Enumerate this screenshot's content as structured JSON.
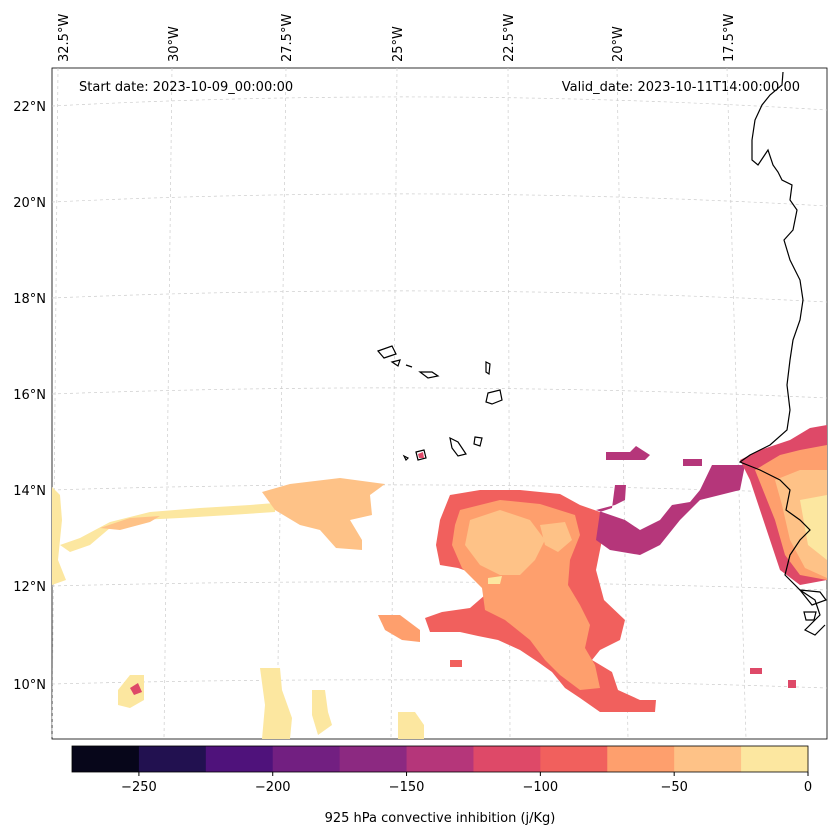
{
  "map": {
    "start_label": "Start date: 2023-10-09_00:00:00",
    "valid_label": "Valid_date: 2023-10-11T14:00:00.00",
    "lon_labels": [
      "32.5°W",
      "30°W",
      "27.5°W",
      "25°W",
      "22.5°W",
      "20°W",
      "17.5°W"
    ],
    "lat_labels": [
      "22°N",
      "20°N",
      "18°N",
      "16°N",
      "14°N",
      "12°N",
      "10°N"
    ]
  },
  "colorbar": {
    "label": "925 hPa convective inhibition (j/Kg)",
    "ticks": [
      "−250",
      "−200",
      "−150",
      "−100",
      "−50",
      "0"
    ],
    "colors": [
      "#07061a",
      "#221150",
      "#4f127b",
      "#721f81",
      "#8c2981",
      "#b5367a",
      "#de4968",
      "#f1605d",
      "#fe9f6d",
      "#fec287",
      "#fce7a0"
    ]
  },
  "chart_data": {
    "type": "heatmap",
    "variable": "925 hPa convective inhibition",
    "units": "j/Kg",
    "vmin": -275,
    "vmax": 0,
    "levels": [
      -275,
      -250,
      -225,
      -200,
      -175,
      -150,
      -125,
      -100,
      -75,
      -50,
      -25,
      0
    ],
    "lon_range": [
      -33,
      -16.5
    ],
    "lat_range": [
      9,
      22.8
    ]
  }
}
